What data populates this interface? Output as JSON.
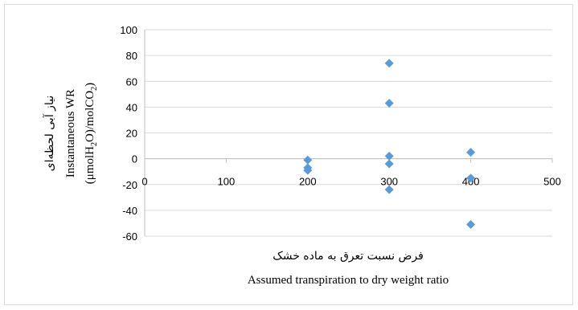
{
  "chart_data": {
    "type": "scatter",
    "xlim": [
      0,
      500
    ],
    "ylim": [
      -60,
      100
    ],
    "x_ticks": [
      "0",
      "100",
      "200",
      "300",
      "400",
      "500"
    ],
    "y_ticks": [
      "100",
      "80",
      "60",
      "40",
      "20",
      "0",
      "-20",
      "-40",
      "-60"
    ],
    "grid": "horizontal",
    "marker": "diamond",
    "marker_color": "#5b9bd5",
    "xlabel_fa": "فرض نسبت تعرق به ماده خشک",
    "xlabel_en": "Assumed transpiration to dry weight ratio",
    "ylabel_fa": "نیاز آبی لحظه‌ای",
    "ylabel_en_line1": "Instantaneous WR",
    "ylabel_en_line2_parts": [
      "(μmolH",
      "2",
      "O)/molCO",
      "2",
      ")"
    ],
    "points": [
      {
        "x": 200,
        "y": -1
      },
      {
        "x": 200,
        "y": -7
      },
      {
        "x": 200,
        "y": -9
      },
      {
        "x": 300,
        "y": 74
      },
      {
        "x": 300,
        "y": 43
      },
      {
        "x": 300,
        "y": 2
      },
      {
        "x": 300,
        "y": -4
      },
      {
        "x": 300,
        "y": -24
      },
      {
        "x": 400,
        "y": 5
      },
      {
        "x": 400,
        "y": -15
      },
      {
        "x": 400,
        "y": -51
      }
    ]
  }
}
